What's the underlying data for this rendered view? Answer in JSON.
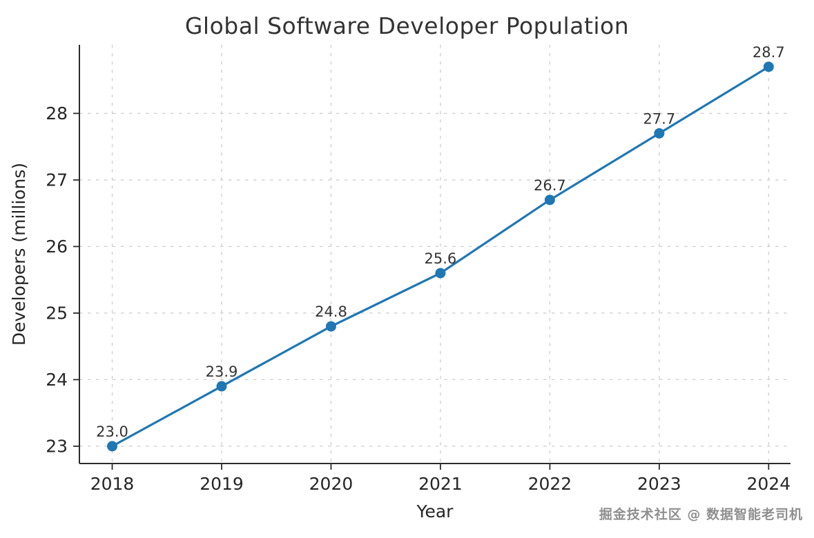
{
  "chart_data": {
    "type": "line",
    "title": "Global Software Developer Population",
    "xlabel": "Year",
    "ylabel": "Developers (millions)",
    "categories": [
      "2018",
      "2019",
      "2020",
      "2021",
      "2022",
      "2023",
      "2024"
    ],
    "values": [
      23.0,
      23.9,
      24.8,
      25.6,
      26.7,
      27.7,
      28.7
    ],
    "point_labels": [
      "23.0",
      "23.9",
      "24.8",
      "25.6",
      "26.7",
      "27.7",
      "28.7"
    ],
    "yticks": [
      23,
      24,
      25,
      26,
      27,
      28
    ],
    "ylim": [
      22.74,
      29.03
    ],
    "grid": true,
    "grid_style": "dashed",
    "legend_position": "none",
    "line_color": "#1f77b4",
    "marker": "circle",
    "grid_color": "#cccccc",
    "text_color": "#262626",
    "label_color": "#333333"
  },
  "watermark": "掘金技术社区 @ 数据智能老司机"
}
